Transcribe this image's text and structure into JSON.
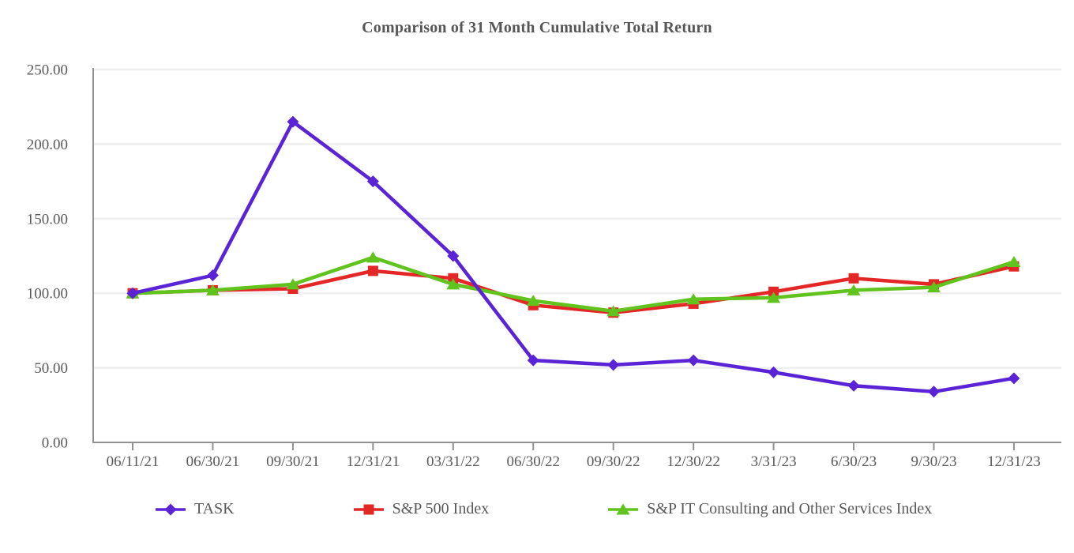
{
  "chart_data": {
    "type": "line",
    "title": "Comparison of 31 Month Cumulative Total Return",
    "xlabel": "",
    "ylabel": "",
    "ylim": [
      0,
      250
    ],
    "grid": "horizontal",
    "legend_position": "bottom",
    "categories": [
      "06/11/21",
      "06/30/21",
      "09/30/21",
      "12/31/21",
      "03/31/22",
      "06/30/22",
      "09/30/22",
      "12/30/22",
      "3/31/23",
      "6/30/23",
      "9/30/23",
      "12/31/23"
    ],
    "yticks": [
      {
        "v": 0,
        "label": "0.00"
      },
      {
        "v": 50,
        "label": "50.00"
      },
      {
        "v": 100,
        "label": "100.00"
      },
      {
        "v": 150,
        "label": "150.00"
      },
      {
        "v": 200,
        "label": "200.00"
      },
      {
        "v": 250,
        "label": "250.00"
      }
    ],
    "series": [
      {
        "id": "task",
        "name": "TASK",
        "marker": "diamond",
        "color": "#5a23d6",
        "values": [
          100,
          112,
          215,
          175,
          125,
          55,
          52,
          55,
          47,
          38,
          34,
          43
        ]
      },
      {
        "id": "sp500",
        "name": "S&P 500 Index",
        "marker": "square",
        "color": "#e32726",
        "values": [
          100,
          102,
          103,
          115,
          110,
          92,
          87,
          93,
          101,
          110,
          106,
          118
        ]
      },
      {
        "id": "spit",
        "name": "S&P IT Consulting and Other Services Index",
        "marker": "triangle",
        "color": "#61c31d",
        "values": [
          100,
          102,
          106,
          124,
          106,
          95,
          88,
          96,
          97,
          102,
          104,
          121
        ]
      }
    ],
    "colors": {
      "axis": "#919191",
      "grid": "#efefef",
      "text": "#595959"
    }
  }
}
